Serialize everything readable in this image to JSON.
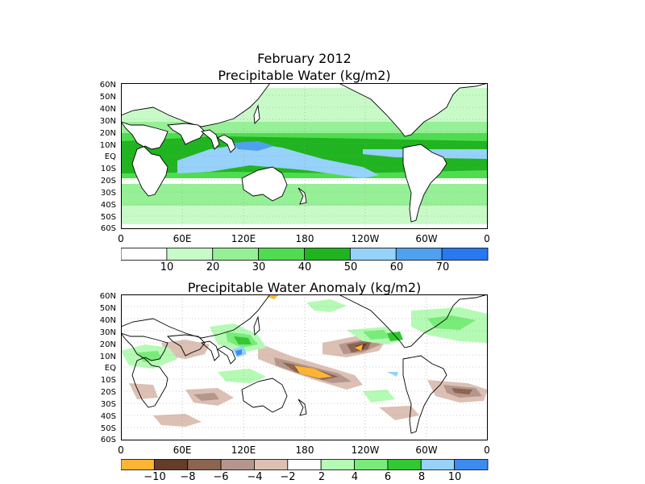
{
  "maps": [
    {
      "title_line1": "February 2012",
      "title_line2": "Precipitable Water (kg/m2)",
      "lat_labels": [
        "60N",
        "50N",
        "40N",
        "30N",
        "20N",
        "10N",
        "EQ",
        "10S",
        "20S",
        "30S",
        "40S",
        "50S",
        "60S"
      ],
      "lon_labels": [
        "0",
        "60E",
        "120E",
        "180",
        "120W",
        "60W",
        "0"
      ],
      "colorbar": {
        "labels": [
          "10",
          "20",
          "30",
          "40",
          "50",
          "60",
          "70"
        ],
        "colors": [
          "#ffffff",
          "#c8fac8",
          "#96f096",
          "#50dc50",
          "#20b420",
          "#96d2fa",
          "#50a0f0",
          "#2878f0"
        ]
      }
    },
    {
      "title_line1": "",
      "title_line2": "Precipitable Water Anomaly (kg/m2)",
      "lat_labels": [
        "60N",
        "50N",
        "40N",
        "30N",
        "20N",
        "10N",
        "EQ",
        "10S",
        "20S",
        "30S",
        "40S",
        "50S",
        "60S"
      ],
      "lon_labels": [
        "0",
        "60E",
        "120E",
        "180",
        "120W",
        "60W",
        "0"
      ],
      "colorbar": {
        "labels": [
          "−10",
          "−8",
          "−6",
          "−4",
          "−2",
          "2",
          "4",
          "6",
          "8",
          "10"
        ],
        "colors": [
          "#ffb432",
          "#643c28",
          "#8c6450",
          "#b4968c",
          "#dcc0b4",
          "#ffffff",
          "#b4fab4",
          "#78eb78",
          "#32c832",
          "#96d2fa",
          "#3c8cf0"
        ]
      }
    }
  ]
}
